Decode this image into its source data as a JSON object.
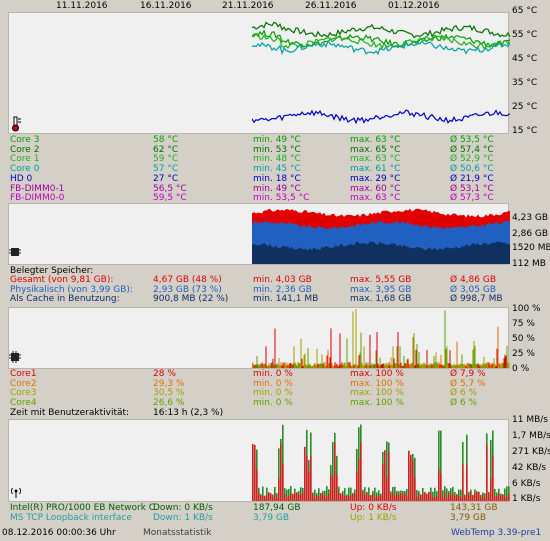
{
  "dates": [
    "11.11.2016",
    "16.11.2016",
    "21.11.2016",
    "26.11.2016",
    "01.12.2016"
  ],
  "temp": {
    "axis": [
      "65 °C",
      "55 °C",
      "45 °C",
      "35 °C",
      "25 °C",
      "15 °C"
    ],
    "rows": [
      {
        "name": "Core 3",
        "cur": "58 °C",
        "min": "min. 49 °C",
        "max": "max. 63 °C",
        "avg": "Ø 53,5 °C",
        "color": "#00a000"
      },
      {
        "name": "Core 2",
        "cur": "62 °C",
        "min": "min. 53 °C",
        "max": "max. 65 °C",
        "avg": "Ø 57,4 °C",
        "color": "#007000"
      },
      {
        "name": "Core 1",
        "cur": "59 °C",
        "min": "min. 48 °C",
        "max": "max. 63 °C",
        "avg": "Ø 52,9 °C",
        "color": "#20b020"
      },
      {
        "name": "Core 0",
        "cur": "57 °C",
        "min": "min. 45 °C",
        "max": "max. 61 °C",
        "avg": "Ø 50,6 °C",
        "color": "#00a0a0"
      },
      {
        "name": "HD 0",
        "cur": "27 °C",
        "min": "min. 18 °C",
        "max": "max. 29 °C",
        "avg": "Ø 21,9 °C",
        "color": "#0000c0"
      },
      {
        "name": "FB-DIMM0-1",
        "cur": "56,5 °C",
        "min": "min. 49 °C",
        "max": "max. 60 °C",
        "avg": "Ø 53,1 °C",
        "color": "#a000a0"
      },
      {
        "name": "FB-DIMM0-0",
        "cur": "59,5 °C",
        "min": "min. 53,5 °C",
        "max": "max. 63 °C",
        "avg": "Ø 57,3 °C",
        "color": "#c000c0"
      }
    ]
  },
  "mem": {
    "axis": [
      "4,23 GB",
      "2,86 GB",
      "1520 MB",
      "112 MB"
    ],
    "title": "Belegter Speicher:",
    "rows": [
      {
        "name": "Gesamt (von 9,81 GB):",
        "cur": "4,67 GB (48 %)",
        "min": "min. 4,03 GB",
        "max": "max. 5,55 GB",
        "avg": "Ø 4,86 GB",
        "color": "#e00000"
      },
      {
        "name": "Physikalisch (von 3,99 GB):",
        "cur": "2,93 GB (73 %)",
        "min": "min. 2,36 GB",
        "max": "max. 3,95 GB",
        "avg": "Ø 3,05 GB",
        "color": "#2060c0"
      },
      {
        "name": "Als Cache in Benutzung:",
        "cur": "900,8 MB (22 %)",
        "min": "min. 141,1 MB",
        "max": "max. 1,68 GB",
        "avg": "Ø 998,7 MB",
        "color": "#103060"
      }
    ]
  },
  "cpu": {
    "axis": [
      "100 %",
      "75 %",
      "50 %",
      "25 %",
      "0 %"
    ],
    "rows": [
      {
        "name": "Core1",
        "cur": "28 %",
        "min": "min. 0 %",
        "max": "max. 100 %",
        "avg": "Ø 7,9 %",
        "color": "#e00000"
      },
      {
        "name": "Core2",
        "cur": "29,3 %",
        "min": "min. 0 %",
        "max": "max. 100 %",
        "avg": "Ø 5,7 %",
        "color": "#e07000"
      },
      {
        "name": "Core3",
        "cur": "30,5 %",
        "min": "min. 0 %",
        "max": "max. 100 %",
        "avg": "Ø 6 %",
        "color": "#a0a000"
      },
      {
        "name": "Core4",
        "cur": "26,6 %",
        "min": "min. 0 %",
        "max": "max. 100 %",
        "avg": "Ø 6 %",
        "color": "#60a000"
      }
    ],
    "activity_label": "Zeit mit Benutzeraktivität:",
    "activity_value": "16:13 h (2,3 %)"
  },
  "net": {
    "axis": [
      "11 MB/s",
      "1,7 MB/s",
      "271 KB/s",
      "42 KB/s",
      "6 KB/s",
      "1 KB/s"
    ],
    "rows": [
      {
        "name": "Intel(R) PRO/1000 EB Network C",
        "down": "Down: 0 KB/s",
        "dtotal": "187,94 GB",
        "up": "Up: 0 KB/s",
        "utotal": "143,31 GB",
        "color": "#006000",
        "ucolor": "#e00000",
        "tcolor": "#806000"
      },
      {
        "name": "MS TCP Loopback interface",
        "down": "Down: 1 KB/s",
        "dtotal": "3,79 GB",
        "up": "Up: 1 KB/s",
        "utotal": "3,79 GB",
        "color": "#20a0a0",
        "ucolor": "#a0a000",
        "tcolor": "#806000"
      }
    ]
  },
  "status": {
    "datetime": "08.12.2016 00:00:36 Uhr",
    "mode": "Monatsstatistik",
    "version": "WebTemp 3.39-pre1"
  }
}
